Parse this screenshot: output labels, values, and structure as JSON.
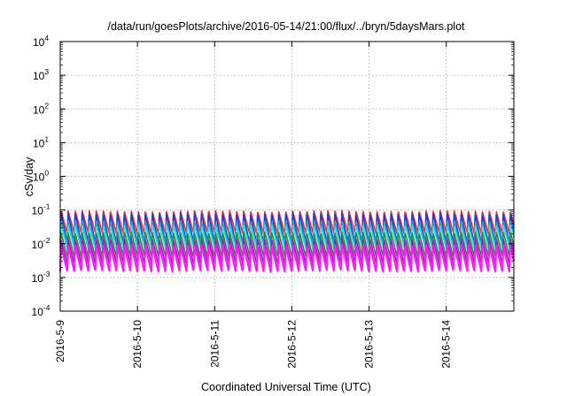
{
  "chart_data": {
    "type": "line",
    "title": "/data/run/goesPlots/archive/2016-05-14/21:00/flux/../bryn/5daysMars.plot",
    "xlabel": "Coordinated Universal Time (UTC)",
    "ylabel": "cSv/day",
    "yscale": "log",
    "ylim": [
      0.0001,
      10000
    ],
    "xlim": [
      "2016-05-09 00:00",
      "2016-05-14 21:00"
    ],
    "y_ticks": [
      {
        "base": "10",
        "exp": "-4"
      },
      {
        "base": "10",
        "exp": "-3"
      },
      {
        "base": "10",
        "exp": "-2"
      },
      {
        "base": "10",
        "exp": "-1"
      },
      {
        "base": "10",
        "exp": "0"
      },
      {
        "base": "10",
        "exp": "1"
      },
      {
        "base": "10",
        "exp": "2"
      },
      {
        "base": "10",
        "exp": "3"
      },
      {
        "base": "10",
        "exp": "4"
      }
    ],
    "x_ticks": [
      "2016-5-9",
      "2016-5-10",
      "2016-5-11",
      "2016-5-12",
      "2016-5-13",
      "2016-5-14"
    ],
    "grid": true,
    "legend": "none",
    "oscillation": {
      "cycles_per_day": 11,
      "note_period_hours": 2.2
    },
    "series": [
      {
        "color": "#ff2a2a",
        "peak": 0.095,
        "trough": 0.02
      },
      {
        "color": "#1e3fd6",
        "peak": 0.08,
        "trough": 0.01
      },
      {
        "color": "#1fa0c8",
        "peak": 0.045,
        "trough": 0.009
      },
      {
        "color": "#33e0e6",
        "peak": 0.035,
        "trough": 0.007
      },
      {
        "color": "#2a8a3a",
        "peak": 0.022,
        "trough": 0.004
      },
      {
        "color": "#9b1fb8",
        "peak": 0.014,
        "trough": 0.0025
      },
      {
        "color": "#ff1aff",
        "peak": 0.009,
        "trough": 0.0015
      }
    ]
  }
}
